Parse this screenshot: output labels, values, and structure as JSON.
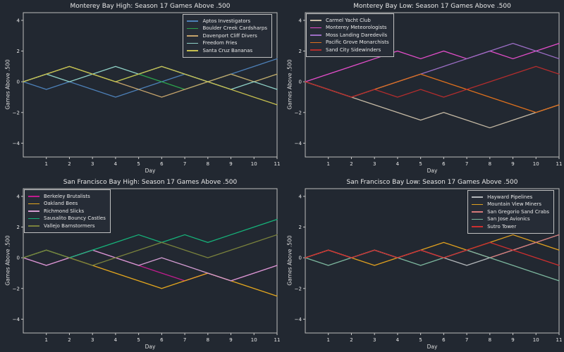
{
  "figure": {
    "background": "#222831",
    "text_color": "#e8e8e8",
    "spine_color": "#bcbcbc",
    "tick_color": "#c8c8c8",
    "legend_background": "#262c36",
    "legend_border": "#c0c0c0"
  },
  "chart_data": [
    {
      "type": "line",
      "title": "Monterey Bay High: Season 17 Games Above .500",
      "xlabel": "Day",
      "ylabel": "Games Above .500",
      "legend_loc": "upper-right",
      "grid": false,
      "xlim": [
        0,
        11
      ],
      "ylim": [
        -4.9,
        4.5
      ],
      "xticks": [
        1,
        2,
        3,
        4,
        5,
        6,
        7,
        8,
        9,
        10,
        11
      ],
      "yticks": [
        4,
        2,
        0,
        -2,
        -4
      ],
      "x": [
        0,
        1,
        2,
        3,
        4,
        5,
        6,
        7,
        8,
        9,
        10,
        11
      ],
      "series": [
        {
          "name": "Aptos Investigators",
          "color": "#4d80b8",
          "values": [
            0,
            -0.5,
            0,
            -0.5,
            -1,
            -0.5,
            0,
            0.5,
            0,
            0.5,
            1,
            1.5
          ]
        },
        {
          "name": "Boulder Creek Cardsharps",
          "color": "#2ca34c",
          "values": [
            0,
            0.5,
            1,
            0.5,
            0,
            0.5,
            0,
            -0.5,
            0,
            0.5,
            0,
            0.5
          ]
        },
        {
          "name": "Davenport Cliff Divers",
          "color": "#c5a36b",
          "values": [
            0,
            0.5,
            1,
            0.5,
            0,
            -0.5,
            -1,
            -0.5,
            0,
            0.5,
            0,
            0.5
          ]
        },
        {
          "name": "Freedom Fries",
          "color": "#8fd2c7",
          "values": [
            0,
            0.5,
            0,
            0.5,
            1,
            0.5,
            1,
            0.5,
            0,
            -0.5,
            0,
            -0.5
          ]
        },
        {
          "name": "Santa Cruz Bananas",
          "color": "#c6bf4f",
          "values": [
            0,
            0.5,
            1,
            0.5,
            0,
            0.5,
            1,
            0.5,
            0,
            -0.5,
            -1,
            -1.5
          ]
        }
      ]
    },
    {
      "type": "line",
      "title": "Monterey Bay Low: Season 17 Games Above .500",
      "xlabel": "Day",
      "ylabel": "Games Above .500",
      "legend_loc": "upper-left",
      "grid": false,
      "xlim": [
        0,
        11
      ],
      "ylim": [
        -4.9,
        4.5
      ],
      "xticks": [
        1,
        2,
        3,
        4,
        5,
        6,
        7,
        8,
        9,
        10,
        11
      ],
      "yticks": [
        4,
        2,
        0,
        -2,
        -4
      ],
      "x": [
        0,
        1,
        2,
        3,
        4,
        5,
        6,
        7,
        8,
        9,
        10,
        11
      ],
      "series": [
        {
          "name": "Carmel Yacht Club",
          "color": "#c6baa5",
          "values": [
            0,
            -0.5,
            -1,
            -1.5,
            -2,
            -2.5,
            -2,
            -2.5,
            -3,
            -2.5,
            -2,
            -1.5
          ]
        },
        {
          "name": "Monterey Meteorologists",
          "color": "#e54ecb",
          "values": [
            0,
            0.5,
            1,
            1.5,
            2,
            1.5,
            2,
            1.5,
            2,
            1.5,
            2,
            2.5
          ]
        },
        {
          "name": "Moss Landing Daredevils",
          "color": "#9c6ec5",
          "values": [
            0,
            -0.5,
            -1,
            -0.5,
            0,
            0.5,
            1,
            1.5,
            2,
            2.5,
            2,
            1.5
          ]
        },
        {
          "name": "Pacific Grove Monarchists",
          "color": "#de701d",
          "values": [
            0,
            -0.5,
            -1,
            -0.5,
            0,
            0.5,
            0,
            -0.5,
            -1,
            -1.5,
            -2,
            -1.5
          ]
        },
        {
          "name": "Sand City Sidewinders",
          "color": "#b32d2d",
          "values": [
            0,
            -0.5,
            -1,
            -0.5,
            -1,
            -0.5,
            -1,
            -0.5,
            0,
            0.5,
            1,
            0.5
          ]
        }
      ]
    },
    {
      "type": "line",
      "title": "San Francisco Bay High: Season 17 Games Above .500",
      "xlabel": "Day",
      "ylabel": "Games Above .500",
      "legend_loc": "upper-left",
      "grid": false,
      "xlim": [
        0,
        11
      ],
      "ylim": [
        -4.9,
        4.5
      ],
      "xticks": [
        1,
        2,
        3,
        4,
        5,
        6,
        7,
        8,
        9,
        10,
        11
      ],
      "yticks": [
        4,
        2,
        0,
        -2,
        -4
      ],
      "x": [
        0,
        1,
        2,
        3,
        4,
        5,
        6,
        7,
        8,
        9,
        10,
        11
      ],
      "series": [
        {
          "name": "Berkeley Brutalists",
          "color": "#c11c8e",
          "values": [
            0,
            -0.5,
            0,
            0.5,
            0,
            -0.5,
            -1,
            -1.5,
            -1,
            -1.5,
            -1,
            -0.5
          ]
        },
        {
          "name": "Oakland Bees",
          "color": "#e4a71e",
          "values": [
            0,
            0.5,
            0,
            -0.5,
            -1,
            -1.5,
            -2,
            -1.5,
            -1,
            -1.5,
            -2,
            -2.5
          ]
        },
        {
          "name": "Richmond Slicks",
          "color": "#d49cd2",
          "values": [
            0,
            -0.5,
            0,
            0.5,
            0,
            -0.5,
            0,
            -0.5,
            -1,
            -1.5,
            -1,
            -0.5
          ]
        },
        {
          "name": "Sausalito Bouncy Castles",
          "color": "#16b37a",
          "values": [
            0,
            0.5,
            0,
            0.5,
            1,
            1.5,
            1,
            1.5,
            1,
            1.5,
            2,
            2.5
          ]
        },
        {
          "name": "Vallejo Barnstormers",
          "color": "#79813c",
          "values": [
            0,
            0.5,
            0,
            -0.5,
            0,
            0.5,
            1,
            0.5,
            0,
            0.5,
            1,
            1.5
          ]
        }
      ]
    },
    {
      "type": "line",
      "title": "San Francisco Bay Low: Season 17 Games Above .500",
      "xlabel": "Day",
      "ylabel": "Games Above .500",
      "legend_loc": "upper-right",
      "grid": false,
      "xlim": [
        0,
        11
      ],
      "ylim": [
        -4.9,
        4.5
      ],
      "xticks": [
        1,
        2,
        3,
        4,
        5,
        6,
        7,
        8,
        9,
        10,
        11
      ],
      "yticks": [
        4,
        2,
        0,
        -2,
        -4
      ],
      "x": [
        0,
        1,
        2,
        3,
        4,
        5,
        6,
        7,
        8,
        9,
        10,
        11
      ],
      "series": [
        {
          "name": "Hayward Pipelines",
          "color": "#b4b8bb",
          "values": [
            0,
            0.5,
            0,
            0.5,
            0,
            0.5,
            0,
            -0.5,
            0,
            0.5,
            1,
            1.5
          ]
        },
        {
          "name": "Mountain View Miners",
          "color": "#e0a01f",
          "values": [
            0,
            0.5,
            0,
            -0.5,
            0,
            0.5,
            1,
            0.5,
            1,
            1.5,
            1,
            0.5
          ]
        },
        {
          "name": "San Gregorio Sand Crabs",
          "color": "#d67a7a",
          "values": [
            0,
            0.5,
            0,
            0.5,
            0,
            0.5,
            0,
            0.5,
            0,
            0.5,
            1,
            1.5
          ]
        },
        {
          "name": "San Jose Avionics",
          "color": "#7db79e",
          "values": [
            0,
            -0.5,
            0,
            0.5,
            0,
            -0.5,
            0,
            0.5,
            0,
            -0.5,
            -1,
            -1.5
          ]
        },
        {
          "name": "Sutro Tower",
          "color": "#cd2f2f",
          "values": [
            0,
            0.5,
            0,
            0.5,
            0,
            0.5,
            0,
            0.5,
            1,
            0.5,
            0,
            -0.5
          ]
        }
      ]
    }
  ]
}
